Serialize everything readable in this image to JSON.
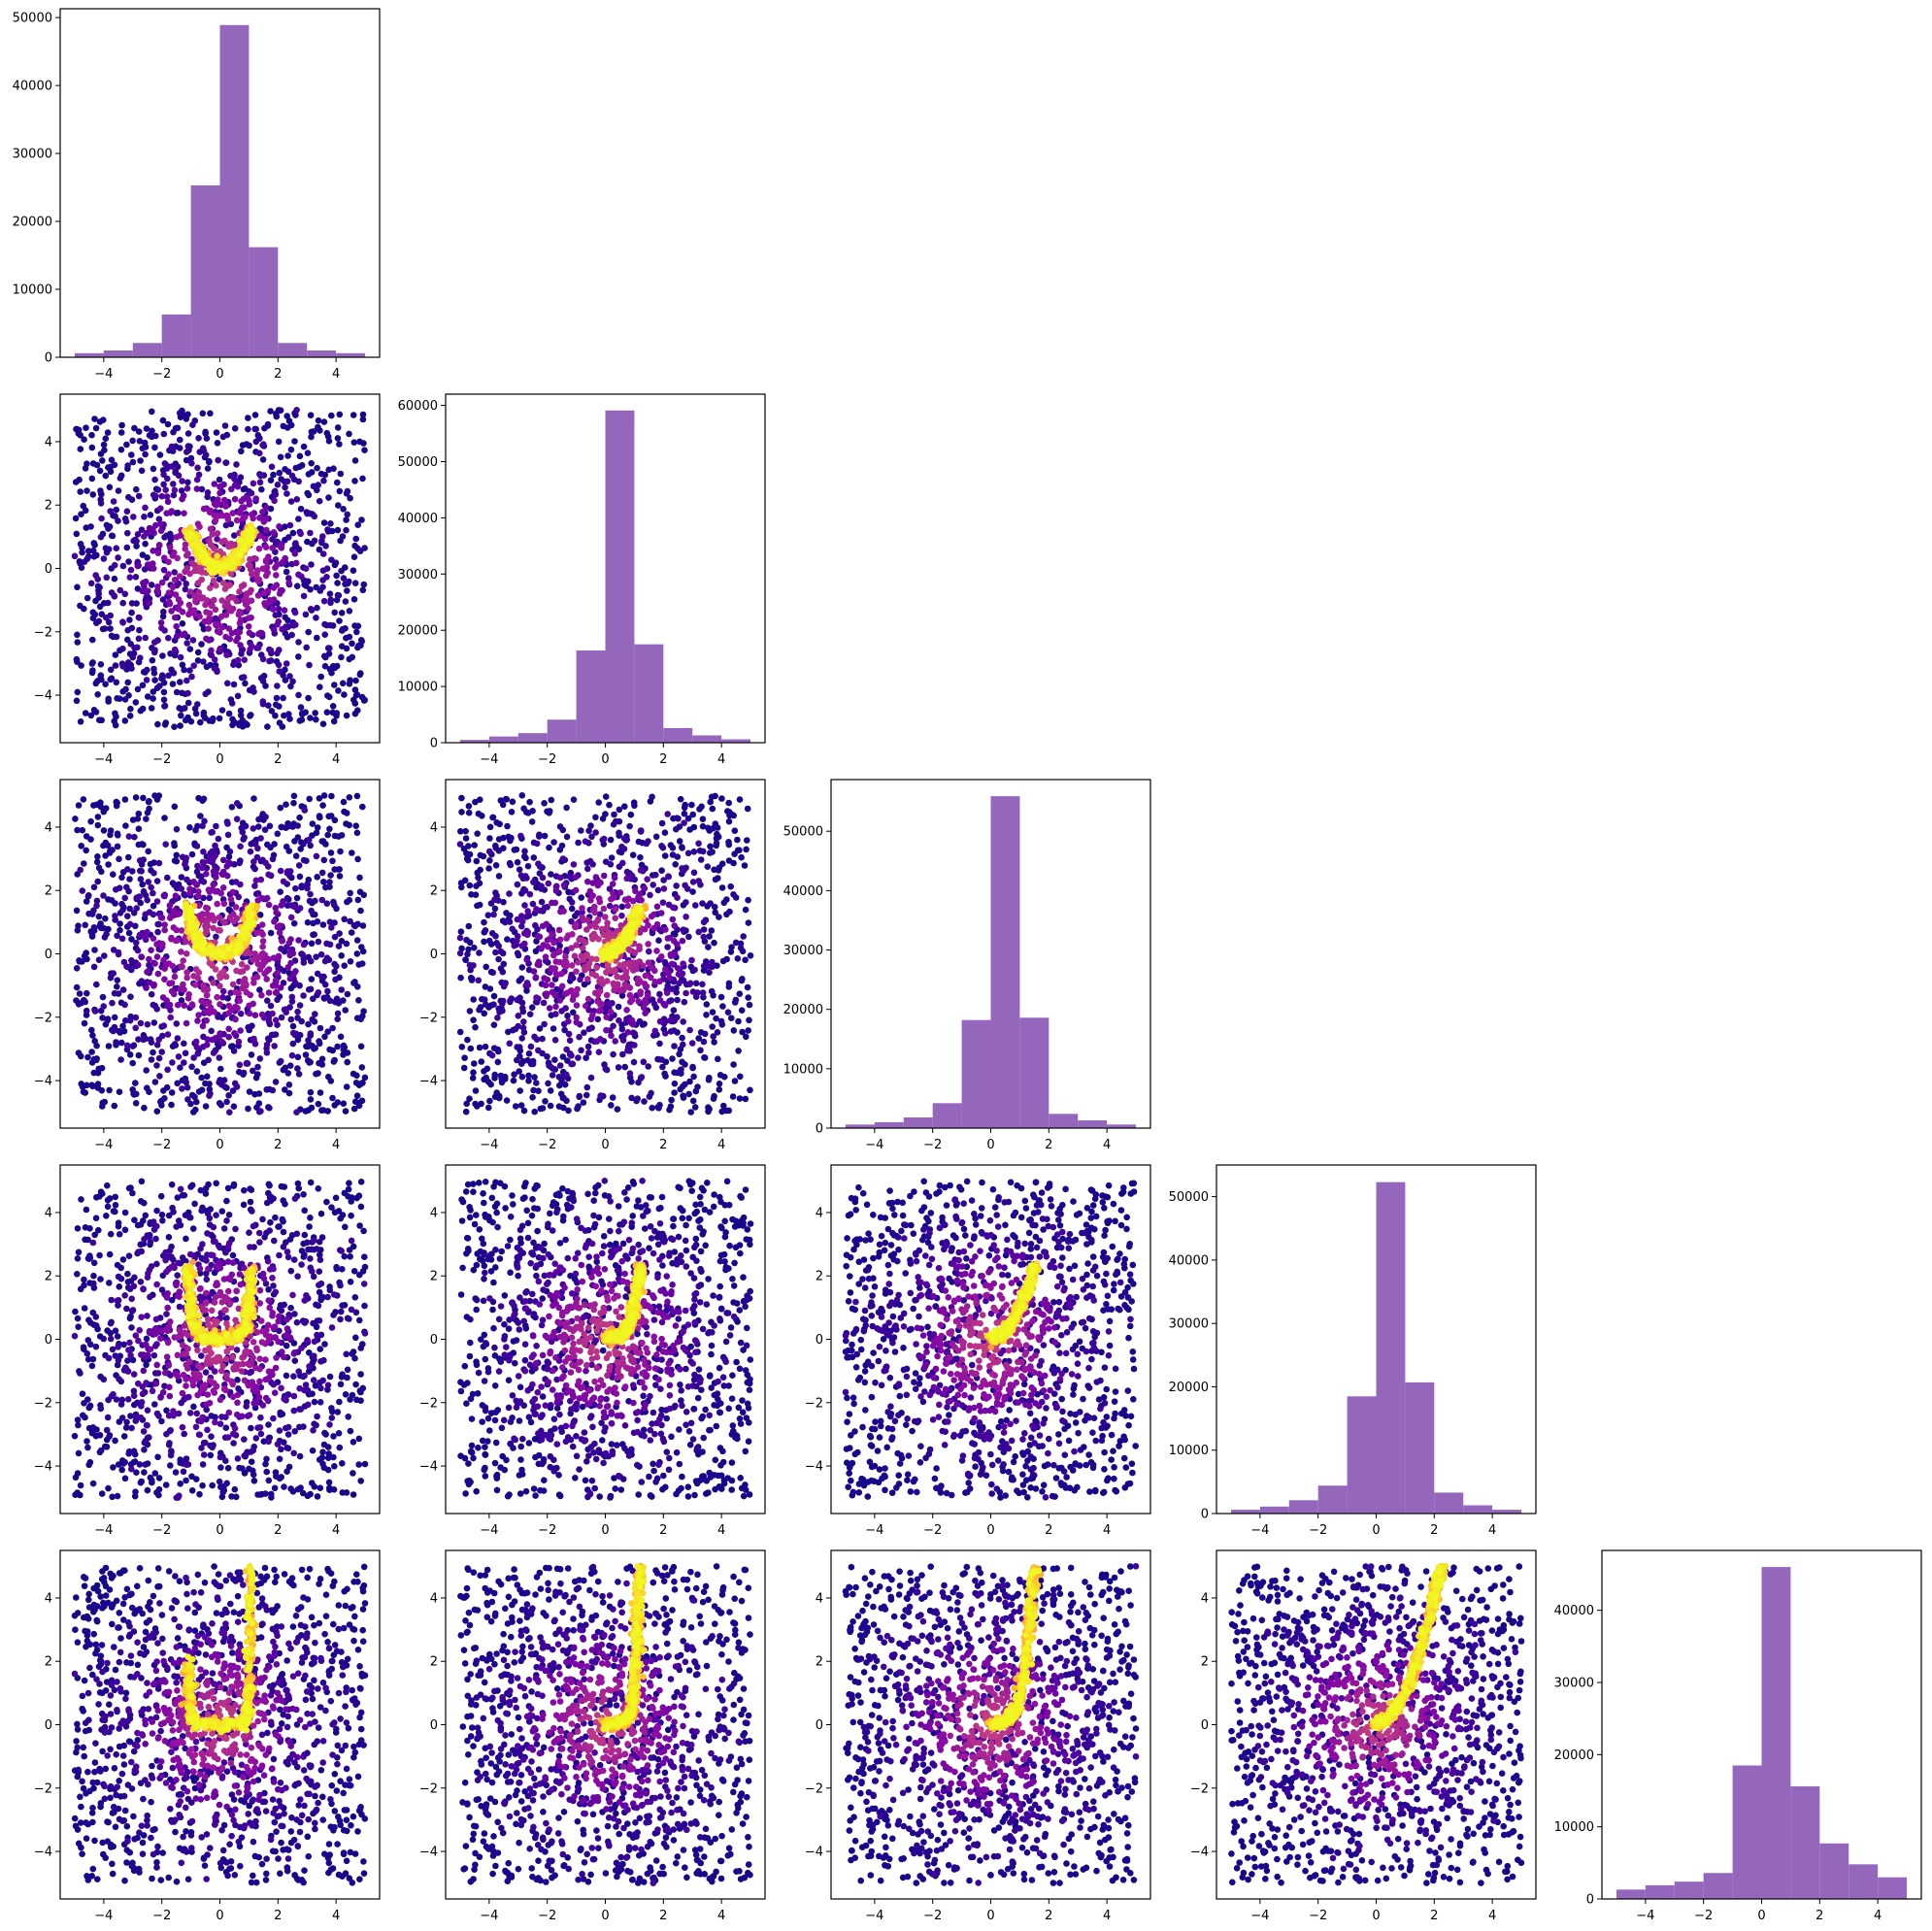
{
  "colors": {
    "hist_fill": "#9467bd",
    "density_colormap": "plasma",
    "axes_frame": "#000000",
    "background": "#ffffff"
  },
  "chart_data": {
    "type": "corner-plot",
    "layout": "lower-triangle 5x5 grid: histograms on the diagonal, density-colored scatter plots below",
    "dimensions": 5,
    "xlim": [
      -5.5,
      5.5
    ],
    "xticks": [
      -4,
      -2,
      0,
      2,
      4
    ],
    "xtick_labels": [
      "−4",
      "−2",
      "0",
      "2",
      "4"
    ],
    "scatter_ylim": [
      -5.5,
      5.5
    ],
    "scatter_yticks": [
      -4,
      -2,
      0,
      2,
      4
    ],
    "scatter_ytick_labels": [
      "−4",
      "−2",
      "0",
      "2",
      "4"
    ],
    "scatter_domain": [
      -5,
      5
    ],
    "histograms": [
      {
        "type": "bar",
        "bin_edges": [
          -5,
          -4,
          -3,
          -2,
          -1,
          0,
          1,
          2,
          3,
          4,
          5
        ],
        "counts": [
          600,
          1000,
          2100,
          6300,
          25300,
          48900,
          16200,
          2100,
          1000,
          600
        ],
        "ylim": [
          0,
          51300
        ],
        "yticks": [
          0,
          10000,
          20000,
          30000,
          40000,
          50000
        ],
        "ytick_labels": [
          "0",
          "10000",
          "20000",
          "30000",
          "40000",
          "50000"
        ]
      },
      {
        "type": "bar",
        "bin_edges": [
          -5,
          -4,
          -3,
          -2,
          -1,
          0,
          1,
          2,
          3,
          4,
          5
        ],
        "counts": [
          500,
          1100,
          1700,
          4100,
          16400,
          59100,
          17500,
          2600,
          1300,
          600
        ],
        "ylim": [
          0,
          62000
        ],
        "yticks": [
          0,
          10000,
          20000,
          30000,
          40000,
          50000,
          60000
        ],
        "ytick_labels": [
          "0",
          "10000",
          "20000",
          "30000",
          "40000",
          "50000",
          "60000"
        ]
      },
      {
        "type": "bar",
        "bin_edges": [
          -5,
          -4,
          -3,
          -2,
          -1,
          0,
          1,
          2,
          3,
          4,
          5
        ],
        "counts": [
          600,
          1000,
          1800,
          4200,
          18200,
          55900,
          18600,
          2400,
          1300,
          600
        ],
        "ylim": [
          0,
          58700
        ],
        "yticks": [
          0,
          10000,
          20000,
          30000,
          40000,
          50000
        ],
        "ytick_labels": [
          "0",
          "10000",
          "20000",
          "30000",
          "40000",
          "50000"
        ]
      },
      {
        "type": "bar",
        "bin_edges": [
          -5,
          -4,
          -3,
          -2,
          -1,
          0,
          1,
          2,
          3,
          4,
          5
        ],
        "counts": [
          600,
          1100,
          2100,
          4400,
          18500,
          52300,
          20700,
          3300,
          1300,
          600
        ],
        "ylim": [
          0,
          55000
        ],
        "yticks": [
          0,
          10000,
          20000,
          30000,
          40000,
          50000
        ],
        "ytick_labels": [
          "0",
          "10000",
          "20000",
          "30000",
          "40000",
          "50000"
        ]
      },
      {
        "type": "bar",
        "bin_edges": [
          -5,
          -4,
          -3,
          -2,
          -1,
          0,
          1,
          2,
          3,
          4,
          5
        ],
        "counts": [
          1300,
          1900,
          2400,
          3600,
          18500,
          46000,
          15600,
          7700,
          4800,
          3000
        ],
        "ylim": [
          0,
          48300
        ],
        "yticks": [
          0,
          10000,
          20000,
          30000,
          40000
        ],
        "ytick_labels": [
          "0",
          "10000",
          "20000",
          "30000",
          "40000"
        ]
      }
    ],
    "scatter_panels": [
      {
        "row": 1,
        "col": 0,
        "type": "scatter",
        "ridge_x": [
          -1.1,
          -0.8,
          -0.4,
          0,
          0.4,
          0.8,
          1.1
        ],
        "ridge_y": [
          1.2,
          0.65,
          0.16,
          0,
          0.16,
          0.65,
          1.2
        ]
      },
      {
        "row": 2,
        "col": 0,
        "type": "scatter",
        "ridge_x": [
          -1.1,
          -1.0,
          -0.8,
          -0.5,
          0,
          0.5,
          0.8,
          1.0,
          1.1
        ],
        "ridge_y": [
          1.5,
          1.0,
          0.45,
          0.1,
          0,
          0.1,
          0.45,
          1.0,
          1.5
        ]
      },
      {
        "row": 2,
        "col": 1,
        "type": "scatter",
        "ridge_x": [
          0,
          0.4,
          0.8,
          1.2
        ],
        "ridge_y": [
          0,
          0.16,
          0.64,
          1.44
        ]
      },
      {
        "row": 3,
        "col": 0,
        "type": "scatter",
        "ridge_x": [
          -1.1,
          -1.0,
          -0.9,
          -0.6,
          0,
          0.6,
          0.9,
          1.0,
          1.1
        ],
        "ridge_y": [
          2.3,
          1.2,
          0.4,
          0.05,
          0,
          0.05,
          0.4,
          1.2,
          2.3
        ]
      },
      {
        "row": 3,
        "col": 1,
        "type": "scatter",
        "ridge_x": [
          0,
          0.6,
          0.9,
          1.05,
          1.2
        ],
        "ridge_y": [
          0,
          0.12,
          0.6,
          1.3,
          2.3
        ]
      },
      {
        "row": 3,
        "col": 2,
        "type": "scatter",
        "ridge_x": [
          0,
          0.4,
          0.8,
          1.2,
          1.5
        ],
        "ridge_y": [
          0,
          0.16,
          0.64,
          1.44,
          2.25
        ]
      },
      {
        "row": 4,
        "col": 0,
        "type": "scatter",
        "ridge_x": [
          -1.1,
          -1.05,
          -1.0,
          -0.8,
          0,
          0.8,
          0.95,
          1.0,
          1.05,
          1.1
        ],
        "ridge_y": [
          2.0,
          1.2,
          0.3,
          0,
          0,
          0,
          0.3,
          1.5,
          3.5,
          5.0
        ]
      },
      {
        "row": 4,
        "col": 1,
        "type": "scatter",
        "ridge_x": [
          0,
          0.6,
          0.9,
          1.0,
          1.1,
          1.2
        ],
        "ridge_y": [
          0,
          0.05,
          0.4,
          1.5,
          3.2,
          5.0
        ]
      },
      {
        "row": 4,
        "col": 2,
        "type": "scatter",
        "ridge_x": [
          0,
          0.5,
          0.9,
          1.15,
          1.35,
          1.5
        ],
        "ridge_y": [
          0,
          0.1,
          0.5,
          1.6,
          3.3,
          5.0
        ]
      },
      {
        "row": 4,
        "col": 3,
        "type": "scatter",
        "ridge_x": [
          0,
          0.5,
          1.0,
          1.5,
          2.0,
          2.25
        ],
        "ridge_y": [
          0,
          0.25,
          1.0,
          2.25,
          4.0,
          5.0
        ]
      }
    ]
  }
}
